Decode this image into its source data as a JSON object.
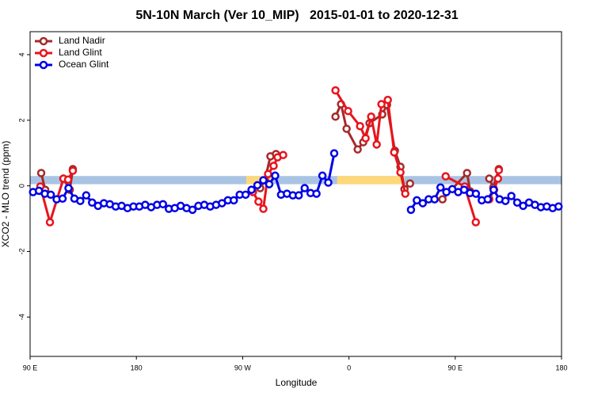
{
  "chart_data": {
    "type": "line",
    "title": "5N-10N March (Ver 10_MIP)   2015-01-01 to 2020-12-31",
    "x_label": "Longitude",
    "y_label": "XCO2 - MLO trend (ppm)",
    "xlim": [
      90,
      540
    ],
    "ylim": [
      -5.2,
      4.7
    ],
    "xticks": [
      {
        "value": 90,
        "label": "90 E"
      },
      {
        "value": 180,
        "label": "180"
      },
      {
        "value": 270,
        "label": "90 W"
      },
      {
        "value": 360,
        "label": "0"
      },
      {
        "value": 450,
        "label": "90 E"
      },
      {
        "value": 540,
        "label": "180"
      }
    ],
    "yticks": [
      -4,
      -2,
      0,
      2,
      4
    ],
    "legend": "top-left",
    "band": {
      "ylim": [
        0.05,
        0.3
      ],
      "color": "#a9c4e3",
      "land_color": "#ffd87a",
      "land_ranges": [
        [
          273,
          296
        ],
        [
          350,
          407
        ]
      ]
    },
    "series": [
      {
        "name": "Land Nadir",
        "color": "#a52a2a",
        "x": [
          99.4,
          102.8,
          null,
          118.2,
          123.6,
          126.2,
          null,
          284.8,
          288.8,
          293.5,
          298.2,
          null,
          348.6,
          353.3,
          358.0,
          367.4,
          372.1,
          377.4,
          388.2,
          392.2,
          398.9,
          403.6,
          407.0,
          411.7,
          null,
          439.2,
          460.0,
          462.7,
          null,
          478.8,
          482.2,
          486.9
        ],
        "values": [
          0.39,
          -0.12,
          null,
          0.22,
          -0.12,
          0.51,
          null,
          -0.07,
          0.17,
          0.9,
          0.97,
          null,
          2.11,
          2.49,
          1.74,
          1.11,
          1.33,
          1.91,
          2.18,
          2.47,
          1.07,
          0.58,
          -0.1,
          0.07,
          null,
          -0.41,
          0.39,
          -0.17,
          null,
          0.22,
          -0.05,
          0.51
        ]
      },
      {
        "name": "Land Glint",
        "color": "#e8141c",
        "x": [
          98.7,
          106.8,
          118.2,
          122.2,
          126.2,
          null,
          278.7,
          283.4,
          287.5,
          291.5,
          296.2,
          299.6,
          304.3,
          null,
          348.6,
          359.3,
          369.4,
          374.1,
          378.8,
          383.5,
          387.5,
          392.9,
          398.3,
          403.6,
          407.7,
          null,
          441.9,
          458.0,
          467.4,
          null,
          478.8,
          482.9,
          486.2,
          486.9
        ],
        "values": [
          -0.02,
          -1.11,
          0.22,
          0.19,
          0.46,
          null,
          -0.19,
          -0.48,
          -0.7,
          0.36,
          0.61,
          0.87,
          0.94,
          null,
          2.91,
          2.28,
          1.82,
          1.45,
          2.11,
          1.26,
          2.49,
          2.62,
          1.02,
          0.41,
          -0.24,
          null,
          0.29,
          -0.02,
          -1.11,
          null,
          -0.41,
          -0.12,
          0.22,
          0.48
        ]
      },
      {
        "name": "Ocean Glint",
        "color": "#0000e6",
        "x": [
          92.5,
          97.5,
          102.5,
          107.5,
          112.5,
          117.5,
          122.5,
          127.5,
          132.5,
          137.5,
          142.5,
          147.5,
          152.5,
          157.5,
          162.5,
          167.5,
          172.5,
          177.5,
          182.5,
          187.5,
          192.5,
          197.5,
          202.5,
          207.5,
          212.5,
          217.5,
          222.5,
          227.5,
          232.5,
          237.5,
          242.5,
          247.5,
          252.5,
          257.5,
          262.5,
          267.5,
          272.5,
          277.5,
          282.5,
          287.5,
          292.5,
          297.5,
          302.5,
          307.5,
          312.5,
          317.5,
          322.5,
          327.5,
          332.5,
          337.5,
          342.5,
          347.5,
          null,
          412.5,
          417.5,
          422.5,
          427.5,
          432.5,
          437.5,
          442.5,
          447.5,
          452.5,
          457.5,
          462.5,
          467.5,
          472.5,
          477.5,
          482.5,
          487.5,
          492.5,
          497.5,
          502.5,
          507.5,
          512.5,
          517.5,
          522.5,
          527.5,
          532.5,
          537.5
        ],
        "values": [
          -0.19,
          -0.15,
          -0.24,
          -0.27,
          -0.41,
          -0.39,
          -0.07,
          -0.39,
          -0.46,
          -0.29,
          -0.51,
          -0.61,
          -0.53,
          -0.56,
          -0.63,
          -0.61,
          -0.68,
          -0.63,
          -0.63,
          -0.58,
          -0.65,
          -0.58,
          -0.56,
          -0.7,
          -0.68,
          -0.61,
          -0.68,
          -0.73,
          -0.61,
          -0.58,
          -0.63,
          -0.58,
          -0.53,
          -0.44,
          -0.44,
          -0.27,
          -0.27,
          -0.12,
          0.02,
          0.17,
          0.05,
          0.31,
          -0.27,
          -0.24,
          -0.29,
          -0.29,
          -0.07,
          -0.22,
          -0.24,
          0.31,
          0.1,
          0.99,
          null,
          -0.73,
          -0.44,
          -0.53,
          -0.41,
          -0.41,
          -0.05,
          -0.19,
          -0.1,
          -0.19,
          -0.12,
          -0.22,
          -0.24,
          -0.44,
          -0.41,
          -0.12,
          -0.41,
          -0.46,
          -0.31,
          -0.51,
          -0.61,
          -0.51,
          -0.58,
          -0.65,
          -0.63,
          -0.68,
          -0.63
        ]
      }
    ]
  }
}
